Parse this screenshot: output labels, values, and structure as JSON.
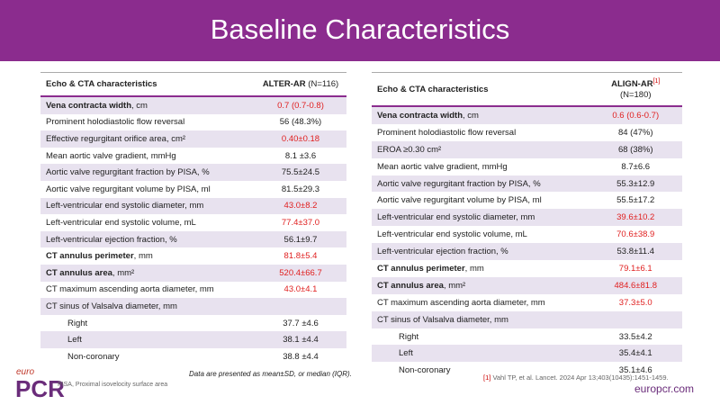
{
  "header": {
    "title": "Baseline Characteristics"
  },
  "left_table": {
    "header": {
      "characteristics": "Echo & CTA characteristics",
      "study": "ALTER-AR",
      "n": "(N=116)"
    },
    "rows": [
      {
        "label_bold": "Vena contracta width",
        "label": ", cm",
        "value": "0.7 (0.7-0.8)",
        "red": true
      },
      {
        "label": "Prominent holodiastolic flow reversal",
        "value": "56 (48.3%)"
      },
      {
        "label": "Effective regurgitant orifice area, cm²",
        "value": "0.40±0.18",
        "red": true
      },
      {
        "label": "Mean aortic valve gradient, mmHg",
        "value": "8.1 ±3.6"
      },
      {
        "label": "Aortic valve regurgitant fraction by PISA, %",
        "value": "75.5±24.5"
      },
      {
        "label": "Aortic valve regurgitant volume by PISA, ml",
        "value": "81.5±29.3"
      },
      {
        "label": "Left-ventricular end systolic diameter, mm",
        "value": "43.0±8.2",
        "red": true
      },
      {
        "label": "Left-ventricular end systolic volume, mL",
        "value": "77.4±37.0",
        "red": true
      },
      {
        "label": "Left-ventricular ejection fraction, %",
        "value": "56.1±9.7"
      },
      {
        "label_bold": "CT annulus perimeter",
        "label": ", mm",
        "value": "81.8±5.4",
        "red": true
      },
      {
        "label_bold": "CT annulus area",
        "label": ", mm²",
        "value": "520.4±66.7",
        "red": true
      },
      {
        "label": "CT maximum ascending aorta diameter, mm",
        "value": "43.0±4.1",
        "red": true
      },
      {
        "label": "CT sinus of Valsalva diameter, mm"
      },
      {
        "label": "Right",
        "value": "37.7 ±4.6",
        "indent": true
      },
      {
        "label": "Left",
        "value": "38.1 ±4.4",
        "indent": true
      },
      {
        "label": "Non-coronary",
        "value": "38.8 ±4.4",
        "indent": true
      }
    ]
  },
  "right_table": {
    "header": {
      "characteristics": "Echo & CTA characteristics",
      "study": "ALIGN-AR",
      "ref": "[1]",
      "n": "(N=180)"
    },
    "rows": [
      {
        "label_bold": "Vena contracta width",
        "label": ", cm",
        "value": "0.6 (0.6-0.7)",
        "red": true
      },
      {
        "label": "Prominent holodiastolic flow reversal",
        "value": "84 (47%)"
      },
      {
        "label": "EROA ≥0.30 cm²",
        "value": "68 (38%)"
      },
      {
        "label": "Mean aortic valve gradient, mmHg",
        "value": "8.7±6.6"
      },
      {
        "label": "Aortic valve regurgitant fraction by PISA, %",
        "value": "55.3±12.9"
      },
      {
        "label": "Aortic valve regurgitant volume by PISA, ml",
        "value": "55.5±17.2"
      },
      {
        "label": "Left-ventricular end systolic diameter, mm",
        "value": "39.6±10.2",
        "red": true
      },
      {
        "label": "Left-ventricular end systolic volume, mL",
        "value": "70.6±38.9",
        "red": true
      },
      {
        "label": "Left-ventricular ejection fraction, %",
        "value": "53.8±11.4"
      },
      {
        "label_bold": "CT annulus perimeter",
        "label": ", mm",
        "value": "79.1±6.1",
        "red": true
      },
      {
        "label_bold": "CT annulus area",
        "label": ", mm²",
        "value": "484.6±81.8",
        "red": true
      },
      {
        "label": "CT maximum ascending aorta diameter, mm",
        "value": "37.3±5.0",
        "red": true
      },
      {
        "label": "CT sinus of Valsalva diameter, mm"
      },
      {
        "label": "Right",
        "value": "33.5±4.2",
        "indent": true
      },
      {
        "label": "Left",
        "value": "35.4±4.1",
        "indent": true
      },
      {
        "label": "Non-coronary",
        "value": "35.1±4.6",
        "indent": true
      }
    ]
  },
  "footer": {
    "note": "Data are presented as mean±SD, or median (IQR).",
    "abbrev": "PISA,  Proximal isovelocity surface area",
    "reference_mark": "[1]",
    "reference": "Vahl TP, et al. Lancet. 2024 Apr 13;403(10435):1451-1459.",
    "logo_small": "euro",
    "logo_big": "PCR",
    "site": "europcr.com"
  }
}
